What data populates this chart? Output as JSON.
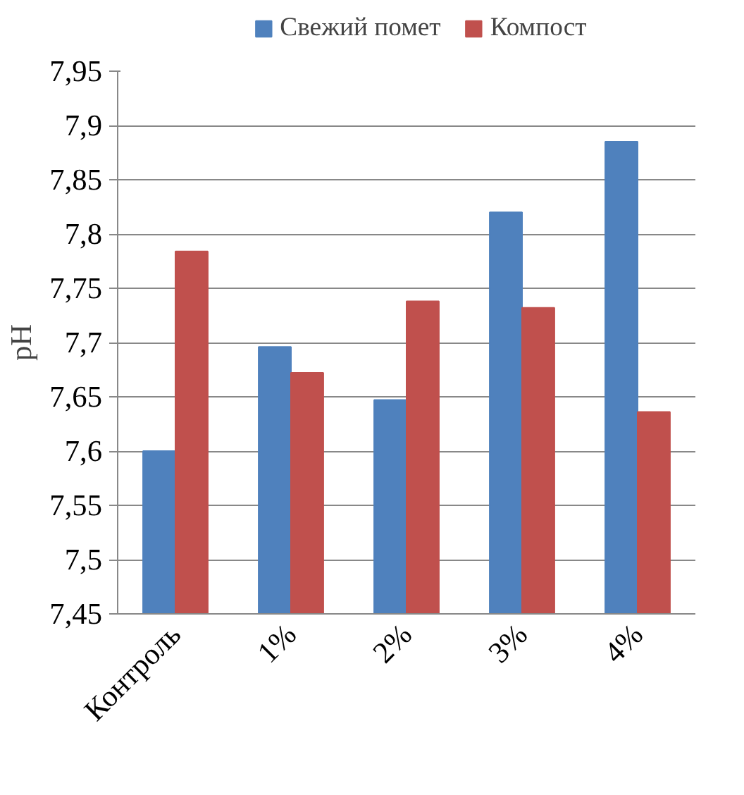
{
  "chart_data": {
    "type": "bar",
    "ylabel": "pH",
    "categories": [
      "Контроль",
      "1%",
      "2%",
      "3%",
      "4%"
    ],
    "series": [
      {
        "name": "Свежий помет",
        "color": "#4f81bd",
        "values": [
          7.6,
          7.696,
          7.647,
          7.82,
          7.885
        ]
      },
      {
        "name": "Компост",
        "color": "#c0504d",
        "values": [
          7.784,
          7.672,
          7.738,
          7.732,
          7.636
        ]
      }
    ],
    "ylim": [
      7.45,
      7.95
    ],
    "yticks": [
      {
        "value": 7.45,
        "label": "7,45"
      },
      {
        "value": 7.5,
        "label": "7,5"
      },
      {
        "value": 7.55,
        "label": "7,55"
      },
      {
        "value": 7.6,
        "label": "7,6"
      },
      {
        "value": 7.65,
        "label": "7,65"
      },
      {
        "value": 7.7,
        "label": "7,7"
      },
      {
        "value": 7.75,
        "label": "7,75"
      },
      {
        "value": 7.8,
        "label": "7,8"
      },
      {
        "value": 7.85,
        "label": "7,85"
      },
      {
        "value": 7.9,
        "label": "7,9"
      },
      {
        "value": 7.95,
        "label": "7,95"
      }
    ],
    "grid": "y",
    "legend": "top"
  }
}
